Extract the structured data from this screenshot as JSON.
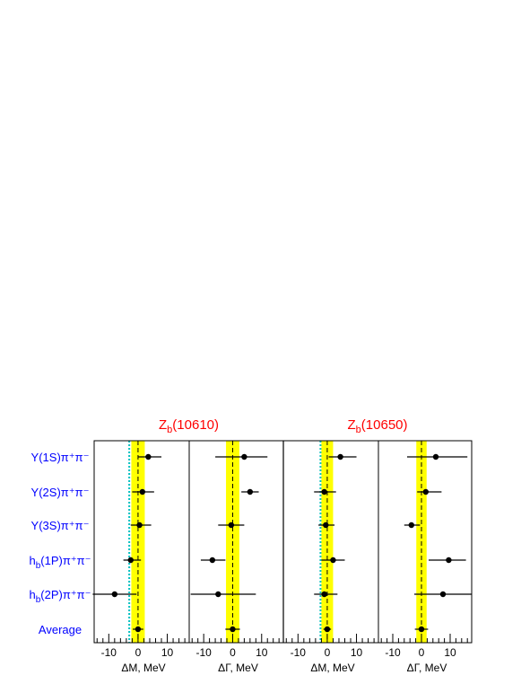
{
  "chart_data": {
    "type": "scatter",
    "rows": [
      {
        "label": "Υ(1S)π⁺π⁻"
      },
      {
        "label": "Υ(2S)π⁺π⁻"
      },
      {
        "label": "Υ(3S)π⁺π⁻"
      },
      {
        "label": "h_b(1P)π⁺π⁻"
      },
      {
        "label": "h_b(2P)π⁺π⁻"
      },
      {
        "label": "Average"
      }
    ],
    "groups": [
      {
        "title": "Z_b(10610)"
      },
      {
        "title": "Z_b(10650)"
      }
    ],
    "panels": [
      {
        "group": 0,
        "xlabel": "ΔM, MeV",
        "xlim": [
          -15,
          17.5
        ],
        "band": [
          -2.3,
          2.3
        ],
        "band_color": "#ffff00",
        "cyan_line": -3.0,
        "dashed_line": 0,
        "ticks": [
          -10,
          0,
          10
        ],
        "tick_labels": [
          "-10",
          "0",
          "10"
        ],
        "points": [
          {
            "value": 3.5,
            "err_lo": 3.5,
            "err_hi": 4.5
          },
          {
            "value": 1.5,
            "err_lo": 3.5,
            "err_hi": 4.0
          },
          {
            "value": 0.5,
            "err_lo": 3.0,
            "err_hi": 4.0
          },
          {
            "value": -2.5,
            "err_lo": 2.5,
            "err_hi": 3.5
          },
          {
            "value": -8.0,
            "err_lo": 7.5,
            "err_hi": 7.5
          },
          {
            "value": 0.0,
            "err_lo": 1.8,
            "err_hi": 1.8
          }
        ]
      },
      {
        "group": 0,
        "xlabel": "ΔΓ, MeV",
        "xlim": [
          -15,
          17.5
        ],
        "band": [
          -2.3,
          2.3
        ],
        "band_color": "#ffff00",
        "dashed_line": 0,
        "ticks": [
          -10,
          0,
          10
        ],
        "tick_labels": [
          "-10",
          "0",
          "10"
        ],
        "points": [
          {
            "value": 4.0,
            "err_lo": 10.0,
            "err_hi": 8.0
          },
          {
            "value": 6.0,
            "err_lo": 3.0,
            "err_hi": 3.0
          },
          {
            "value": -0.5,
            "err_lo": 4.5,
            "err_hi": 4.5
          },
          {
            "value": -7.0,
            "err_lo": 4.0,
            "err_hi": 4.5
          },
          {
            "value": -5.0,
            "err_lo": 9.5,
            "err_hi": 13.0
          },
          {
            "value": 0.0,
            "err_lo": 2.5,
            "err_hi": 2.5
          }
        ]
      },
      {
        "group": 1,
        "xlabel": "ΔM, MeV",
        "xlim": [
          -15,
          17.5
        ],
        "band": [
          -2.0,
          2.0
        ],
        "band_color": "#ffff00",
        "cyan_line": -2.3,
        "dashed_line": 0,
        "ticks": [
          -10,
          0,
          10
        ],
        "tick_labels": [
          "-10",
          "0",
          "10"
        ],
        "points": [
          {
            "value": 4.5,
            "err_lo": 4.0,
            "err_hi": 5.5
          },
          {
            "value": -1.0,
            "err_lo": 3.5,
            "err_hi": 4.0
          },
          {
            "value": -0.5,
            "err_lo": 2.5,
            "err_hi": 3.0
          },
          {
            "value": 2.0,
            "err_lo": 4.0,
            "err_hi": 4.0
          },
          {
            "value": -1.0,
            "err_lo": 3.5,
            "err_hi": 4.5
          },
          {
            "value": 0.0,
            "err_lo": 1.3,
            "err_hi": 1.3
          }
        ]
      },
      {
        "group": 1,
        "xlabel": "ΔΓ, MeV",
        "xlim": [
          -15,
          17.5
        ],
        "band": [
          -1.8,
          1.8
        ],
        "band_color": "#ffff00",
        "dashed_line": 0,
        "ticks": [
          -10,
          0,
          10
        ],
        "tick_labels": [
          "-10",
          "0",
          "10"
        ],
        "points": [
          {
            "value": 5.0,
            "err_lo": 10.0,
            "err_hi": 11.0
          },
          {
            "value": 1.5,
            "err_lo": 3.0,
            "err_hi": 5.5
          },
          {
            "value": -3.5,
            "err_lo": 2.5,
            "err_hi": 3.0
          },
          {
            "value": 9.5,
            "err_lo": 7.0,
            "err_hi": 6.0
          },
          {
            "value": 7.5,
            "err_lo": 10.0,
            "err_hi": 10.0
          },
          {
            "value": 0.0,
            "err_lo": 2.3,
            "err_hi": 2.3
          }
        ]
      }
    ]
  },
  "colors": {
    "title": "#ff0000",
    "row_label": "#0000ff",
    "band": "#ffff00",
    "cyan_line": "#00c0c0",
    "axis": "#000000"
  }
}
